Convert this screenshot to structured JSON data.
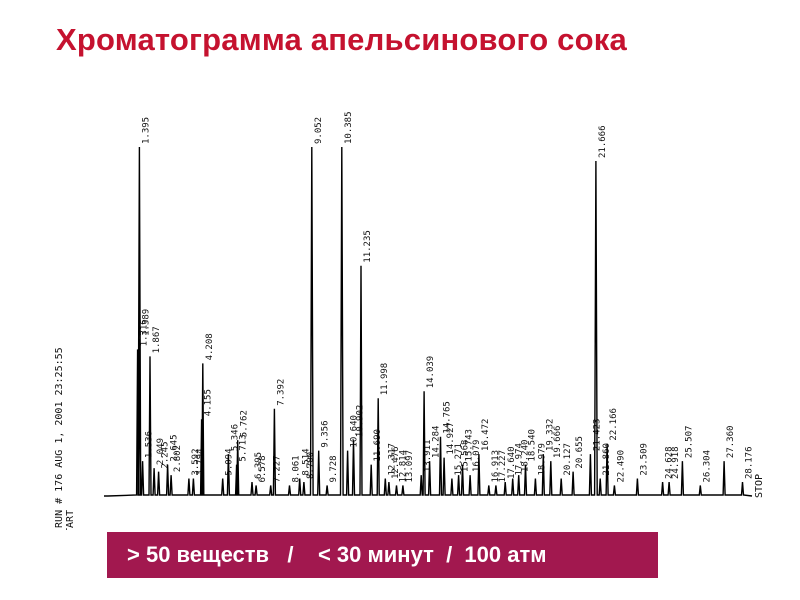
{
  "slide": {
    "title": "Хроматограмма апельсинового сока",
    "summary": "> 50 веществ   /    < 30 минут  /  100 атм"
  },
  "colors": {
    "title": "#c5122f",
    "banner": "#a2184f",
    "trace": "#000000"
  },
  "chart_data": {
    "type": "line",
    "title": "",
    "xlabel": "",
    "ylabel": "",
    "xlim": [
      0,
      28.6
    ],
    "ylim": [
      0,
      100
    ],
    "grid": false,
    "header_text": "* RUN #  176          AUG  1, 2001  23:25:55",
    "start_label": "START",
    "stop_label": "STOP",
    "peaks": [
      {
        "rt": 1.316,
        "height": 42,
        "label": "1.316"
      },
      {
        "rt": 1.395,
        "height": 100,
        "label": "1.395"
      },
      {
        "rt": 1.389,
        "height": 45,
        "label": "1.389"
      },
      {
        "rt": 1.536,
        "height": 10,
        "label": "1.536"
      },
      {
        "rt": 1.867,
        "height": 40,
        "label": "1.867"
      },
      {
        "rt": 2.049,
        "height": 8,
        "label": "2.049"
      },
      {
        "rt": 2.245,
        "height": 7,
        "label": "2.245"
      },
      {
        "rt": 2.645,
        "height": 9,
        "label": "2.645"
      },
      {
        "rt": 2.802,
        "height": 6,
        "label": "2.802"
      },
      {
        "rt": 3.592,
        "height": 5,
        "label": "3.592"
      },
      {
        "rt": 3.794,
        "height": 5,
        "label": "3.794"
      },
      {
        "rt": 4.155,
        "height": 22,
        "label": "4.155"
      },
      {
        "rt": 4.208,
        "height": 38,
        "label": "4.208"
      },
      {
        "rt": 5.094,
        "height": 5,
        "label": "5.094"
      },
      {
        "rt": 5.346,
        "height": 12,
        "label": "5.346"
      },
      {
        "rt": 5.713,
        "height": 9,
        "label": "5.713"
      },
      {
        "rt": 5.762,
        "height": 16,
        "label": "5.762"
      },
      {
        "rt": 6.395,
        "height": 4,
        "label": "6.395"
      },
      {
        "rt": 6.578,
        "height": 3,
        "label": "6.578"
      },
      {
        "rt": 7.392,
        "height": 25,
        "label": "7.392"
      },
      {
        "rt": 7.227,
        "height": 3,
        "label": "7.227"
      },
      {
        "rt": 8.061,
        "height": 3,
        "label": "8.061"
      },
      {
        "rt": 8.514,
        "height": 5,
        "label": "8.514"
      },
      {
        "rt": 8.7,
        "height": 4,
        "label": "8.700"
      },
      {
        "rt": 9.052,
        "height": 100,
        "label": "9.052"
      },
      {
        "rt": 9.356,
        "height": 13,
        "label": "9.356"
      },
      {
        "rt": 9.728,
        "height": 3,
        "label": "9.728"
      },
      {
        "rt": 10.385,
        "height": 100,
        "label": "10.385"
      },
      {
        "rt": 10.64,
        "height": 13,
        "label": "10.640"
      },
      {
        "rt": 10.902,
        "height": 16,
        "label": "10.902"
      },
      {
        "rt": 11.235,
        "height": 66,
        "label": "11.235"
      },
      {
        "rt": 11.69,
        "height": 9,
        "label": "11.690"
      },
      {
        "rt": 11.998,
        "height": 28,
        "label": "11.998"
      },
      {
        "rt": 12.317,
        "height": 5,
        "label": "12.317"
      },
      {
        "rt": 12.476,
        "height": 4,
        "label": "12.476"
      },
      {
        "rt": 12.814,
        "height": 3,
        "label": "12.814"
      },
      {
        "rt": 13.097,
        "height": 3,
        "label": "13.097"
      },
      {
        "rt": 13.911,
        "height": 6,
        "label": "13.911"
      },
      {
        "rt": 14.039,
        "height": 30,
        "label": "14.039"
      },
      {
        "rt": 14.284,
        "height": 10,
        "label": "14.284"
      },
      {
        "rt": 14.765,
        "height": 17,
        "label": "14.765"
      },
      {
        "rt": 14.927,
        "height": 11,
        "label": "14.927"
      },
      {
        "rt": 15.271,
        "height": 5,
        "label": "15.271"
      },
      {
        "rt": 15.568,
        "height": 6,
        "label": "15.568"
      },
      {
        "rt": 15.743,
        "height": 9,
        "label": "15.743"
      },
      {
        "rt": 16.079,
        "height": 6,
        "label": "16.079"
      },
      {
        "rt": 16.472,
        "height": 12,
        "label": "16.472"
      },
      {
        "rt": 16.913,
        "height": 3,
        "label": "16.913"
      },
      {
        "rt": 17.227,
        "height": 3,
        "label": "17.227"
      },
      {
        "rt": 17.64,
        "height": 4,
        "label": "17.640"
      },
      {
        "rt": 17.974,
        "height": 5,
        "label": "17.974"
      },
      {
        "rt": 18.24,
        "height": 6,
        "label": "18.240"
      },
      {
        "rt": 18.54,
        "height": 9,
        "label": "18.540"
      },
      {
        "rt": 18.979,
        "height": 5,
        "label": "18.979"
      },
      {
        "rt": 19.332,
        "height": 12,
        "label": "19.332"
      },
      {
        "rt": 19.666,
        "height": 10,
        "label": "19.666"
      },
      {
        "rt": 20.127,
        "height": 5,
        "label": "20.127"
      },
      {
        "rt": 20.655,
        "height": 7,
        "label": "20.655"
      },
      {
        "rt": 21.423,
        "height": 12,
        "label": "21.423"
      },
      {
        "rt": 21.666,
        "height": 96,
        "label": "21.666"
      },
      {
        "rt": 21.86,
        "height": 5,
        "label": "21.860"
      },
      {
        "rt": 22.166,
        "height": 15,
        "label": "22.166"
      },
      {
        "rt": 22.49,
        "height": 3,
        "label": "22.490"
      },
      {
        "rt": 23.509,
        "height": 5,
        "label": "23.509"
      },
      {
        "rt": 24.628,
        "height": 4,
        "label": "24.628"
      },
      {
        "rt": 24.918,
        "height": 4,
        "label": "24.918"
      },
      {
        "rt": 25.507,
        "height": 10,
        "label": "25.507"
      },
      {
        "rt": 26.304,
        "height": 3,
        "label": "26.304"
      },
      {
        "rt": 27.36,
        "height": 10,
        "label": "27.360"
      },
      {
        "rt": 28.176,
        "height": 4,
        "label": "28.176"
      }
    ]
  }
}
